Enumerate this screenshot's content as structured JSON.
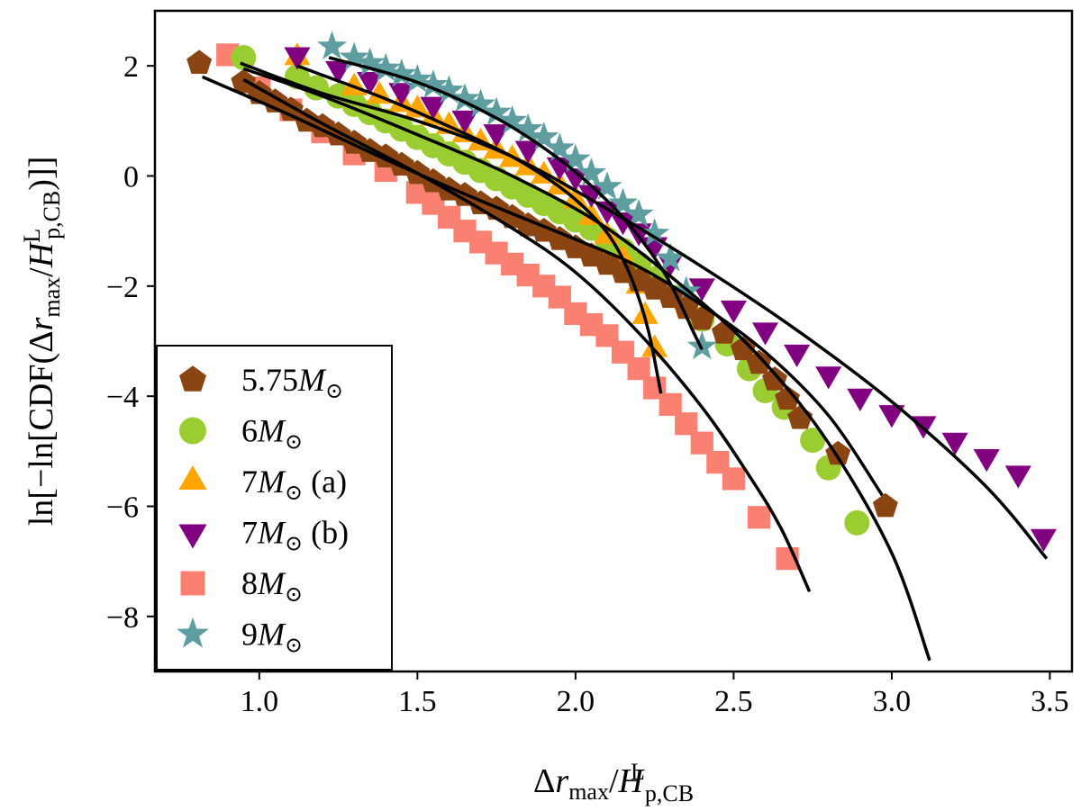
{
  "chart_data": {
    "type": "scatter",
    "title": "",
    "xlabel": "Δr_max / H^L_p,CB",
    "ylabel": "ln[−ln[CDF(Δr_max / H^L_p,CB)]]",
    "xlim": [
      0.67,
      3.57
    ],
    "ylim": [
      -9.0,
      3.0
    ],
    "xticks": [
      1.0,
      1.5,
      2.0,
      2.5,
      3.0,
      3.5
    ],
    "xtick_labels": [
      "1.0",
      "1.5",
      "2.0",
      "2.5",
      "3.0",
      "3.5"
    ],
    "yticks": [
      2,
      0,
      -2,
      -4,
      -6,
      -8
    ],
    "ytick_labels": [
      "2",
      "0",
      "−2",
      "−4",
      "−6",
      "−8"
    ],
    "grid": false,
    "legend_position": "lower-left",
    "series": [
      {
        "name": "5.75M⊙",
        "label_main": "5.75",
        "label_suffix": "",
        "marker": "pentagon",
        "color": "#8B4513",
        "x": [
          0.81,
          0.95,
          1.0,
          1.05,
          1.1,
          1.15,
          1.2,
          1.25,
          1.3,
          1.35,
          1.4,
          1.45,
          1.5,
          1.55,
          1.6,
          1.65,
          1.7,
          1.75,
          1.8,
          1.85,
          1.9,
          1.95,
          2.0,
          2.05,
          2.1,
          2.15,
          2.2,
          2.25,
          2.3,
          2.35,
          2.4,
          2.47,
          2.53,
          2.58,
          2.63,
          2.67,
          2.71,
          2.83,
          2.98
        ],
        "y": [
          2.05,
          1.7,
          1.5,
          1.35,
          1.2,
          1.0,
          0.9,
          0.75,
          0.6,
          0.45,
          0.35,
          0.2,
          0.05,
          -0.1,
          -0.25,
          -0.35,
          -0.5,
          -0.6,
          -0.75,
          -0.9,
          -1.0,
          -1.15,
          -1.3,
          -1.45,
          -1.6,
          -1.75,
          -1.9,
          -2.05,
          -2.2,
          -2.4,
          -2.6,
          -2.85,
          -3.15,
          -3.4,
          -3.7,
          -4.05,
          -4.4,
          -5.05,
          -6.0
        ]
      },
      {
        "name": "6M⊙",
        "label_main": "6",
        "label_suffix": "",
        "marker": "circle",
        "color": "#9ACD32",
        "x": [
          0.95,
          1.12,
          1.18,
          1.25,
          1.3,
          1.35,
          1.4,
          1.45,
          1.5,
          1.55,
          1.6,
          1.65,
          1.7,
          1.75,
          1.8,
          1.85,
          1.9,
          1.95,
          2.0,
          2.05,
          2.1,
          2.15,
          2.2,
          2.26,
          2.33,
          2.4,
          2.48,
          2.55,
          2.6,
          2.66,
          2.75,
          2.8,
          2.89
        ],
        "y": [
          2.15,
          1.8,
          1.6,
          1.45,
          1.3,
          1.15,
          1.0,
          0.85,
          0.7,
          0.55,
          0.4,
          0.25,
          0.1,
          -0.05,
          -0.2,
          -0.35,
          -0.5,
          -0.65,
          -0.8,
          -0.95,
          -1.15,
          -1.35,
          -1.6,
          -1.85,
          -2.2,
          -2.6,
          -3.05,
          -3.5,
          -3.9,
          -4.2,
          -4.8,
          -5.3,
          -6.3
        ]
      },
      {
        "name": "7M⊙ (a)",
        "label_main": "7",
        "label_suffix": " (a)",
        "marker": "triangle-up",
        "color": "#FFA500",
        "x": [
          1.12,
          1.3,
          1.38,
          1.45,
          1.5,
          1.55,
          1.6,
          1.65,
          1.7,
          1.75,
          1.8,
          1.85,
          1.9,
          1.95,
          2.0,
          2.05,
          2.1,
          2.15,
          2.2,
          2.22,
          2.25
        ],
        "y": [
          2.15,
          1.6,
          1.45,
          1.3,
          1.2,
          1.05,
          0.9,
          0.75,
          0.6,
          0.45,
          0.3,
          0.15,
          0.0,
          -0.2,
          -0.45,
          -0.75,
          -1.1,
          -1.5,
          -2.0,
          -2.55,
          -3.15
        ]
      },
      {
        "name": "7M⊙ (b)",
        "label_main": "7",
        "label_suffix": " (b)",
        "marker": "triangle-down",
        "color": "#800080",
        "x": [
          1.12,
          1.25,
          1.35,
          1.45,
          1.55,
          1.65,
          1.75,
          1.85,
          1.95,
          2.0,
          2.05,
          2.1,
          2.15,
          2.2,
          2.25,
          2.3,
          2.4,
          2.5,
          2.6,
          2.7,
          2.8,
          2.9,
          3.0,
          3.1,
          3.2,
          3.3,
          3.4,
          3.48
        ],
        "y": [
          2.2,
          1.95,
          1.75,
          1.55,
          1.3,
          1.05,
          0.8,
          0.5,
          0.2,
          0.0,
          -0.3,
          -0.6,
          -0.8,
          -1.0,
          -1.25,
          -1.55,
          -2.0,
          -2.4,
          -2.8,
          -3.2,
          -3.6,
          -4.0,
          -4.3,
          -4.5,
          -4.8,
          -5.1,
          -5.4,
          -6.55
        ]
      },
      {
        "name": "8M⊙",
        "label_main": "8",
        "label_suffix": "",
        "marker": "square",
        "color": "#FA8072",
        "x": [
          0.9,
          1.0,
          1.1,
          1.2,
          1.3,
          1.4,
          1.5,
          1.55,
          1.6,
          1.65,
          1.7,
          1.75,
          1.8,
          1.85,
          1.9,
          1.95,
          2.0,
          2.05,
          2.1,
          2.15,
          2.2,
          2.25,
          2.3,
          2.35,
          2.4,
          2.45,
          2.5,
          2.58,
          2.67
        ],
        "y": [
          2.2,
          1.6,
          1.2,
          0.8,
          0.4,
          0.1,
          -0.3,
          -0.5,
          -0.75,
          -1.0,
          -1.2,
          -1.4,
          -1.6,
          -1.8,
          -2.0,
          -2.2,
          -2.5,
          -2.7,
          -2.9,
          -3.2,
          -3.5,
          -3.85,
          -4.15,
          -4.5,
          -4.85,
          -5.2,
          -5.5,
          -6.2,
          -6.95
        ]
      },
      {
        "name": "9M⊙",
        "label_main": "9",
        "label_suffix": "",
        "marker": "star",
        "color": "#5F9EA0",
        "x": [
          1.23,
          1.3,
          1.35,
          1.4,
          1.45,
          1.5,
          1.55,
          1.6,
          1.65,
          1.7,
          1.75,
          1.8,
          1.85,
          1.9,
          1.95,
          2.0,
          2.05,
          2.1,
          2.15,
          2.2,
          2.25,
          2.3,
          2.35,
          2.4
        ],
        "y": [
          2.35,
          2.15,
          2.05,
          1.95,
          1.85,
          1.75,
          1.65,
          1.55,
          1.4,
          1.3,
          1.15,
          1.0,
          0.85,
          0.7,
          0.5,
          0.3,
          0.05,
          -0.2,
          -0.5,
          -0.7,
          -1.05,
          -1.5,
          -2.1,
          -3.1
        ]
      }
    ],
    "fit_curves": [
      {
        "name": "fit-5.75",
        "x": [
          0.82,
          1.1,
          1.4,
          1.7,
          2.0,
          2.2,
          2.4,
          2.6,
          2.8,
          2.97
        ],
        "y": [
          1.8,
          1.1,
          0.3,
          -0.45,
          -1.15,
          -1.65,
          -2.35,
          -3.2,
          -4.35,
          -5.8
        ]
      },
      {
        "name": "fit-6",
        "x": [
          0.95,
          1.2,
          1.5,
          1.8,
          2.1,
          2.4,
          2.6,
          2.8,
          3.0,
          3.12
        ],
        "y": [
          1.95,
          1.45,
          0.75,
          0.0,
          -0.95,
          -2.3,
          -3.4,
          -4.85,
          -6.85,
          -8.8
        ]
      },
      {
        "name": "fit-7a",
        "x": [
          1.12,
          1.4,
          1.6,
          1.8,
          1.95,
          2.05,
          2.12,
          2.18,
          2.23,
          2.27
        ],
        "y": [
          2.0,
          1.4,
          0.9,
          0.35,
          -0.2,
          -0.7,
          -1.2,
          -1.9,
          -2.8,
          -3.95
        ]
      },
      {
        "name": "fit-7b",
        "x": [
          0.94,
          1.2,
          1.5,
          1.8,
          2.1,
          2.4,
          2.7,
          3.0,
          3.3,
          3.49
        ],
        "y": [
          2.05,
          1.5,
          1.0,
          0.35,
          -0.6,
          -1.65,
          -2.8,
          -4.1,
          -5.65,
          -6.95
        ]
      },
      {
        "name": "fit-8",
        "x": [
          0.95,
          1.2,
          1.5,
          1.8,
          2.0,
          2.2,
          2.4,
          2.55,
          2.65,
          2.74
        ],
        "y": [
          1.75,
          0.95,
          0.05,
          -0.95,
          -1.75,
          -2.85,
          -4.2,
          -5.45,
          -6.4,
          -7.55
        ]
      },
      {
        "name": "fit-9",
        "x": [
          1.22,
          1.5,
          1.75,
          1.95,
          2.1,
          2.2,
          2.28,
          2.33,
          2.37,
          2.4
        ],
        "y": [
          2.15,
          1.7,
          1.05,
          0.3,
          -0.45,
          -1.1,
          -1.75,
          -2.3,
          -2.8,
          -3.15
        ]
      }
    ]
  }
}
